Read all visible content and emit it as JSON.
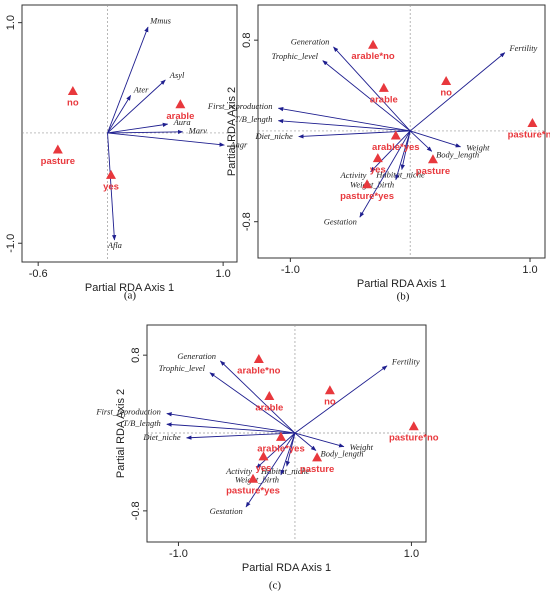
{
  "chart_data": [
    {
      "type": "biplot",
      "caption": "(a)",
      "xlabel": "Partial RDA Axis 1",
      "ylabel": "Partial RDA Axis 2",
      "xlim": [
        -0.74,
        1.12
      ],
      "ylim": [
        -1.17,
        1.16
      ],
      "xticks": [
        -0.6,
        {
          "value": 1,
          "label": "1.0"
        }
      ],
      "yticks": [
        {
          "value": -1,
          "label": "-1.0"
        },
        {
          "value": 1,
          "label": "1.0"
        }
      ],
      "arrows": {
        "color": "#1f1f8f",
        "names": [
          "Mmus",
          "Asyl",
          "Ater",
          "Aura",
          "Marv",
          "Aagr",
          "Afla"
        ],
        "x": [
          0.35,
          0.5,
          0.2,
          0.52,
          0.65,
          1.01,
          0.06
        ],
        "y": [
          0.96,
          0.48,
          0.34,
          0.08,
          0.01,
          -0.11,
          -0.97
        ]
      },
      "points": {
        "color": "#e8383d",
        "names": [
          "no",
          "arable",
          "pasture",
          "yes"
        ],
        "x": [
          -0.3,
          0.63,
          -0.43,
          0.03
        ],
        "y": [
          0.38,
          0.26,
          -0.15,
          -0.38
        ]
      }
    },
    {
      "type": "biplot",
      "caption": "(b)",
      "xlabel": "Partial RDA Axis 1",
      "ylabel": "Partial RDA Axis 2",
      "xlim": [
        -1.27,
        1.125
      ],
      "ylim": [
        -1.12,
        1.11
      ],
      "xticks": [
        {
          "value": -1,
          "label": "-1.0"
        },
        {
          "value": 1,
          "label": "1.0"
        }
      ],
      "yticks": [
        -0.8,
        0.8
      ],
      "arrows": {
        "color": "#1f1f8f",
        "names": [
          "Fertility",
          "Generation",
          "Trophic_level",
          "First_reproduction",
          "T/B_length",
          "Diet_niche",
          "Weight",
          "Body_length",
          "Habitat_niche",
          "Weight_birth",
          "Activity",
          "Gestation"
        ],
        "x": [
          0.79,
          -0.64,
          -0.73,
          -1.1,
          -1.1,
          -0.93,
          0.42,
          0.18,
          -0.07,
          -0.12,
          -0.33,
          -0.42
        ],
        "y": [
          0.69,
          0.74,
          0.62,
          0.2,
          0.09,
          -0.05,
          -0.14,
          -0.18,
          -0.34,
          -0.43,
          -0.36,
          -0.76
        ]
      },
      "points": {
        "color": "#e8383d",
        "names": [
          "arable*no",
          "arable",
          "no",
          "pasture*no",
          "arable*yes",
          "yes",
          "pasture",
          "pasture*yes"
        ],
        "x": [
          -0.31,
          -0.22,
          0.3,
          1.02,
          -0.12,
          -0.27,
          0.19,
          -0.36
        ],
        "y": [
          0.76,
          0.38,
          0.44,
          0.07,
          -0.04,
          -0.24,
          -0.25,
          -0.47
        ]
      }
    },
    {
      "type": "biplot",
      "caption": "(c)",
      "xlabel": "Partial RDA Axis 1",
      "ylabel": "Partial RDA Axis 2",
      "xlim": [
        -1.27,
        1.125
      ],
      "ylim": [
        -1.12,
        1.11
      ],
      "xticks": [
        {
          "value": -1,
          "label": "-1.0"
        },
        {
          "value": 1,
          "label": "1.0"
        }
      ],
      "yticks": [
        -0.8,
        0.8
      ],
      "arrows": {
        "color": "#1f1f8f",
        "names": [
          "Fertility",
          "Generation",
          "Trophic_level",
          "First_reproduction",
          "T/B_length",
          "Diet_niche",
          "Weight",
          "Body_length",
          "Habitat_niche",
          "Weight_birth",
          "Activity",
          "Gestation"
        ],
        "x": [
          0.79,
          -0.64,
          -0.73,
          -1.1,
          -1.1,
          -0.93,
          0.42,
          0.18,
          -0.07,
          -0.12,
          -0.33,
          -0.42
        ],
        "y": [
          0.69,
          0.74,
          0.62,
          0.2,
          0.09,
          -0.05,
          -0.14,
          -0.18,
          -0.34,
          -0.43,
          -0.36,
          -0.76
        ]
      },
      "points": {
        "color": "#e8383d",
        "names": [
          "arable*no",
          "arable",
          "no",
          "pasture*no",
          "arable*yes",
          "yes",
          "pasture",
          "pasture*yes"
        ],
        "x": [
          -0.31,
          -0.22,
          0.3,
          1.02,
          -0.12,
          -0.27,
          0.19,
          -0.36
        ],
        "y": [
          0.76,
          0.38,
          0.44,
          0.07,
          -0.04,
          -0.24,
          -0.25,
          -0.47
        ]
      }
    }
  ]
}
